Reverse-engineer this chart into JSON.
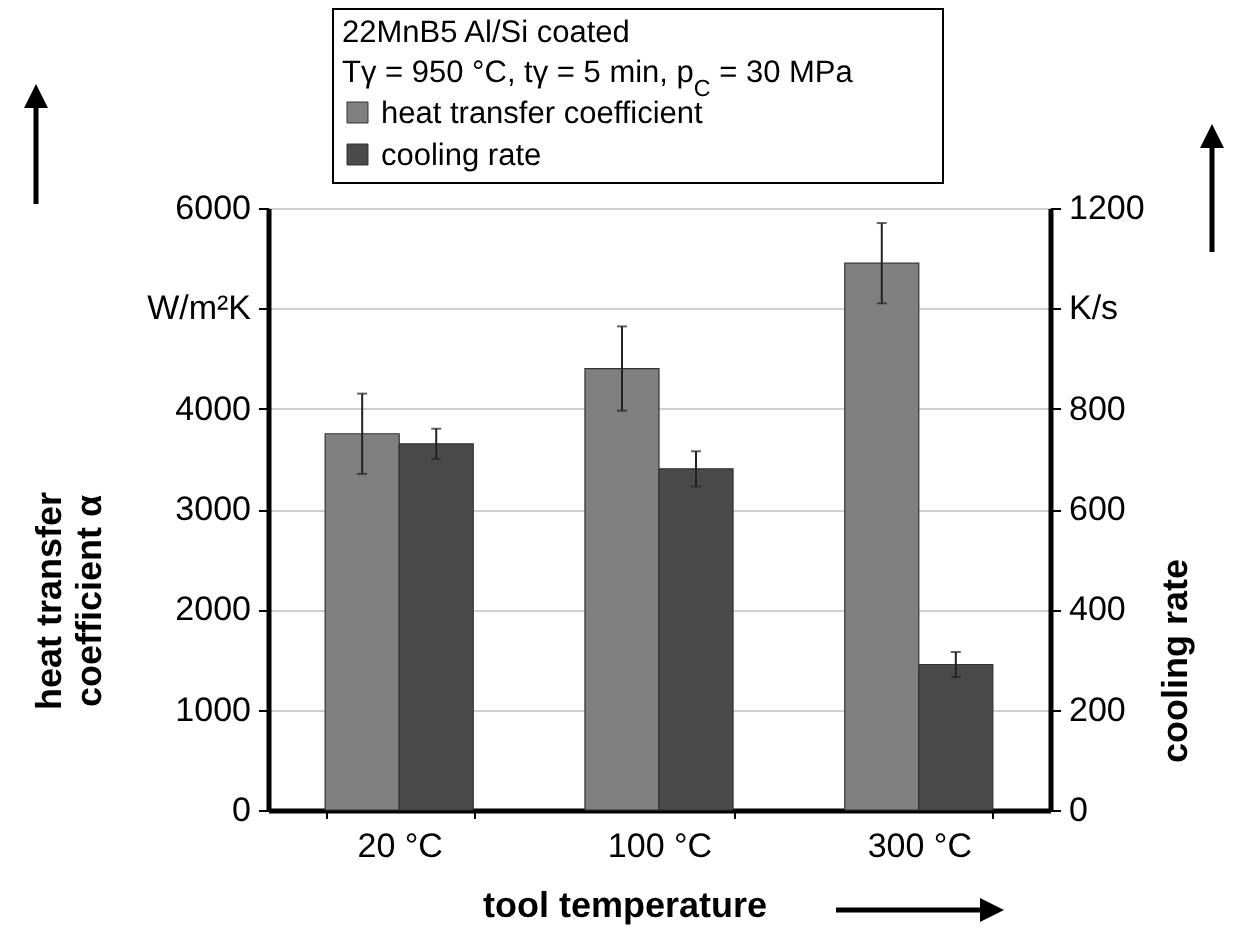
{
  "chart_data": {
    "type": "bar",
    "legend_title": "22MnB5 Al/Si coated Tγ = 950 °C, tγ = 5 min, p$_{C}$ = 30 MPa",
    "xlabel": "tool temperature",
    "ylabel": "heat transfer coefficient α",
    "y2label": "cooling rate",
    "categories": [
      "20 °C",
      "100 °C",
      "300 °C"
    ],
    "series": [
      {
        "name": "heat transfer coefficient",
        "color": "#808080",
        "values": [
          3750,
          4400,
          5450
        ],
        "errors": [
          400,
          420,
          400
        ]
      },
      {
        "name": "cooling rate",
        "color": "#4a4a4a",
        "values": [
          730,
          680,
          290
        ],
        "errors": [
          30,
          35,
          25
        ],
        "axis": "y2"
      }
    ],
    "ylim": [
      0,
      6000
    ],
    "yticks": [
      0,
      1000,
      2000,
      3000,
      4000,
      {
        "value": 5000,
        "label": "W/m²K"
      },
      6000
    ],
    "y2lim": [
      0,
      1200
    ],
    "y2ticks": [
      0,
      200,
      400,
      600,
      800,
      {
        "value": 1000,
        "label": "K/s"
      },
      1200
    ],
    "grid": "y",
    "legend": "top"
  }
}
